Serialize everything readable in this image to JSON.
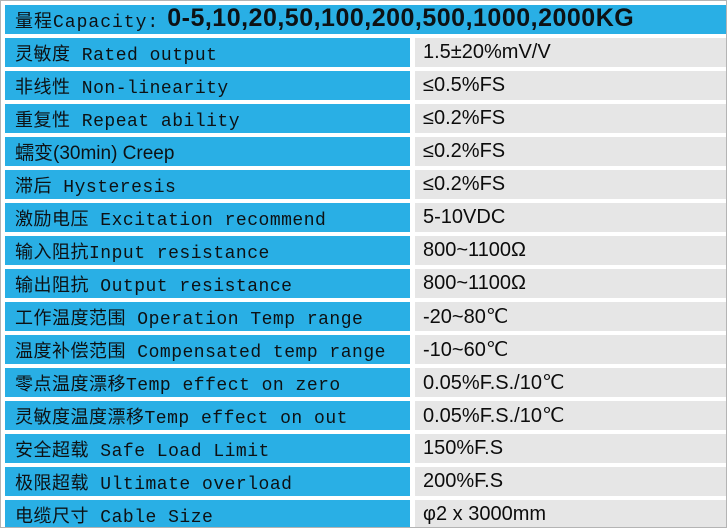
{
  "table": {
    "colors": {
      "accent_blue": "#29AFE5",
      "cell_gray": "#E6E6E6"
    },
    "header": {
      "prefix": "量程Capacity:",
      "values": "0-5,10,20,50,100,200,500,1000,2000KG"
    },
    "rows": [
      {
        "label": "灵敏度 Rated output",
        "value": "1.5±20%mV/V"
      },
      {
        "label": "非线性 Non-linearity",
        "value": "≤0.5%FS"
      },
      {
        "label": "重复性 Repeat ability",
        "value": "≤0.2%FS"
      },
      {
        "label": "蠕变(30min) Creep",
        "value": "≤0.2%FS"
      },
      {
        "label": "滞后 Hysteresis",
        "value": "≤0.2%FS"
      },
      {
        "label": "激励电压 Excitation recommend",
        "value": "5-10VDC"
      },
      {
        "label": "输入阻抗Input resistance",
        "value": "800~1100Ω"
      },
      {
        "label": "输出阻抗 Output resistance",
        "value": "800~1100Ω"
      },
      {
        "label": "工作温度范围 Operation Temp range",
        "value": "-20~80℃"
      },
      {
        "label": "温度补偿范围 Compensated temp range",
        "value": "-10~60℃"
      },
      {
        "label": "零点温度漂移Temp effect on zero",
        "value": "0.05%F.S./10℃"
      },
      {
        "label": "灵敏度温度漂移Temp effect on out",
        "value": "0.05%F.S./10℃"
      },
      {
        "label": "安全超载 Safe Load Limit",
        "value": "150%F.S"
      },
      {
        "label": "极限超载 Ultimate overload",
        "value": "200%F.S"
      },
      {
        "label": "电缆尺寸 Cable Size",
        "value": "φ2 x 3000mm"
      }
    ]
  }
}
